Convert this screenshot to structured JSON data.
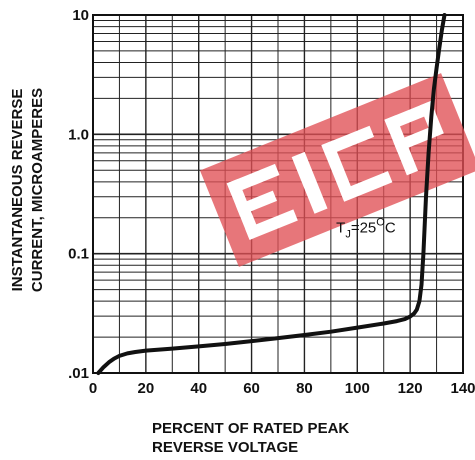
{
  "chart_data": {
    "type": "line",
    "title": "",
    "xlabel_lines": [
      "PERCENT OF RATED PEAK",
      "REVERSE VOLTAGE"
    ],
    "ylabel_lines": [
      "INSTANTANEOUS REVERSE",
      "CURRENT, MICROAMPERES"
    ],
    "x_scale": "linear",
    "y_scale": "log",
    "xlim": [
      0,
      140
    ],
    "ylim": [
      0.01,
      10
    ],
    "x_ticks": [
      0,
      20,
      40,
      60,
      80,
      100,
      120,
      140
    ],
    "x_tick_labels": [
      "0",
      "20",
      "40",
      "60",
      "80",
      "100",
      "120",
      "140"
    ],
    "y_ticks": [
      0.01,
      0.1,
      1,
      10
    ],
    "y_tick_labels": [
      ".01",
      "0.1",
      "1.0",
      "10"
    ],
    "grid": true,
    "annotation": {
      "text": "T",
      "subscript": "J",
      "rest": "=25",
      "superscript": "O",
      "unit": "C",
      "x": 92,
      "y": 0.15
    },
    "series": [
      {
        "x": [
          2,
          4,
          6,
          8,
          10,
          13,
          16,
          20,
          30,
          40,
          50,
          60,
          70,
          80,
          90,
          100,
          110,
          115,
          118,
          120,
          121.5,
          122.5,
          123.5,
          124.3,
          125,
          126,
          127,
          128,
          129,
          130,
          131,
          132,
          133
        ],
        "y": [
          0.01,
          0.0112,
          0.0123,
          0.0132,
          0.0139,
          0.0146,
          0.015,
          0.0154,
          0.016,
          0.0167,
          0.0175,
          0.0185,
          0.0196,
          0.0208,
          0.0222,
          0.024,
          0.026,
          0.0272,
          0.0283,
          0.0297,
          0.0315,
          0.034,
          0.04,
          0.055,
          0.1,
          0.3,
          0.7,
          1.4,
          2.4,
          3.6,
          5.2,
          7.5,
          10
        ]
      }
    ]
  },
  "watermark_text": "EIC",
  "colors": {
    "curve": "#111111",
    "grid": "#222222",
    "watermark": "#e05055"
  }
}
